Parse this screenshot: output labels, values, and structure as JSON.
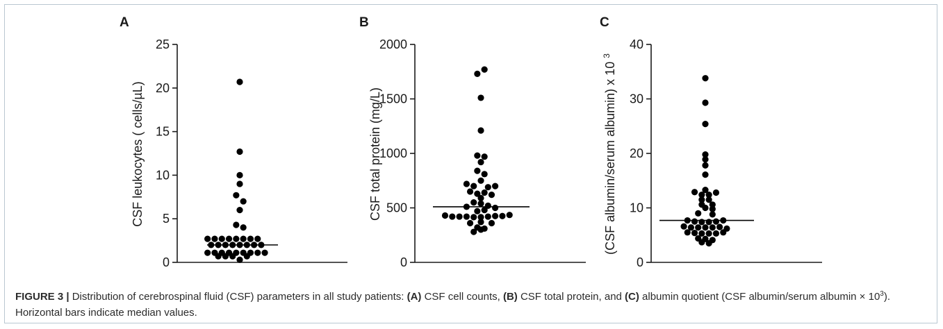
{
  "caption": {
    "figure_label": "FIGURE 3 |",
    "intro": " Distribution of cerebrospinal fluid (CSF) parameters in all study patients: ",
    "a_tag": "(A)",
    "a_text": " CSF cell counts, ",
    "b_tag": "(B)",
    "b_text": " CSF total protein, and ",
    "c_tag": "(C)",
    "c_text": " albumin quotient (CSF albumin/serum albumin × 10",
    "exp": "3",
    "tail": "). Horizontal bars indicate median values."
  },
  "chart_data": [
    {
      "type": "scatter",
      "panel": "A",
      "ylabel": "CSF leukocytes ( cells/µL)",
      "ylim": [
        0,
        25
      ],
      "yticks": [
        0,
        5,
        10,
        15,
        20,
        25
      ],
      "median": 2,
      "points": [
        {
          "x": 0,
          "y": 20.7
        },
        {
          "x": 0,
          "y": 12.7
        },
        {
          "x": 0,
          "y": 10.0
        },
        {
          "x": 0,
          "y": 9.0
        },
        {
          "x": -0.5,
          "y": 7.7
        },
        {
          "x": 0.5,
          "y": 7.0
        },
        {
          "x": 0,
          "y": 6.0
        },
        {
          "x": -0.5,
          "y": 4.3
        },
        {
          "x": 0.5,
          "y": 4.0
        },
        {
          "x": -4.5,
          "y": 2.7
        },
        {
          "x": -3.5,
          "y": 2.7
        },
        {
          "x": -2.5,
          "y": 2.7
        },
        {
          "x": -1.5,
          "y": 2.7
        },
        {
          "x": -0.5,
          "y": 2.7
        },
        {
          "x": 0.5,
          "y": 2.7
        },
        {
          "x": 1.5,
          "y": 2.7
        },
        {
          "x": 2.5,
          "y": 2.7
        },
        {
          "x": -4,
          "y": 2.0
        },
        {
          "x": -3,
          "y": 2.0
        },
        {
          "x": -2,
          "y": 2.0
        },
        {
          "x": -1,
          "y": 2.0
        },
        {
          "x": 0,
          "y": 2.0
        },
        {
          "x": 1,
          "y": 2.0
        },
        {
          "x": 2,
          "y": 2.0
        },
        {
          "x": 3,
          "y": 2.0
        },
        {
          "x": -4.5,
          "y": 1.1
        },
        {
          "x": -3.5,
          "y": 1.1
        },
        {
          "x": -2.5,
          "y": 1.1
        },
        {
          "x": -1.5,
          "y": 1.1
        },
        {
          "x": -0.5,
          "y": 1.1
        },
        {
          "x": 0.5,
          "y": 1.1
        },
        {
          "x": 1.5,
          "y": 1.1
        },
        {
          "x": 2.5,
          "y": 1.1
        },
        {
          "x": 3.5,
          "y": 1.1
        },
        {
          "x": -3,
          "y": 0.7
        },
        {
          "x": -2,
          "y": 0.7
        },
        {
          "x": -1,
          "y": 0.7
        },
        {
          "x": 1,
          "y": 0.7
        },
        {
          "x": 0,
          "y": 0.3
        }
      ]
    },
    {
      "type": "scatter",
      "panel": "B",
      "ylabel": "CSF total protein (mg/L)",
      "ylim": [
        0,
        2000
      ],
      "yticks": [
        0,
        500,
        1000,
        1500,
        2000
      ],
      "median": 510,
      "points": [
        {
          "x": 0.5,
          "y": 1770
        },
        {
          "x": -0.5,
          "y": 1730
        },
        {
          "x": 0,
          "y": 1510
        },
        {
          "x": 0,
          "y": 1210
        },
        {
          "x": -0.5,
          "y": 980
        },
        {
          "x": 0.5,
          "y": 970
        },
        {
          "x": 0,
          "y": 920
        },
        {
          "x": -0.5,
          "y": 840
        },
        {
          "x": 0.5,
          "y": 810
        },
        {
          "x": 0,
          "y": 750
        },
        {
          "x": -2,
          "y": 720
        },
        {
          "x": -1,
          "y": 700
        },
        {
          "x": 1,
          "y": 690
        },
        {
          "x": 2,
          "y": 700
        },
        {
          "x": -1.5,
          "y": 650
        },
        {
          "x": -0.5,
          "y": 630
        },
        {
          "x": 0.5,
          "y": 640
        },
        {
          "x": 1.5,
          "y": 620
        },
        {
          "x": 0,
          "y": 590
        },
        {
          "x": -1,
          "y": 550
        },
        {
          "x": 0,
          "y": 540
        },
        {
          "x": -2,
          "y": 510
        },
        {
          "x": 1,
          "y": 520
        },
        {
          "x": 2,
          "y": 500
        },
        {
          "x": -0.5,
          "y": 470
        },
        {
          "x": 0.5,
          "y": 480
        },
        {
          "x": -5,
          "y": 430
        },
        {
          "x": -4,
          "y": 420
        },
        {
          "x": -3,
          "y": 420
        },
        {
          "x": -2,
          "y": 420
        },
        {
          "x": -1,
          "y": 415
        },
        {
          "x": 0,
          "y": 415
        },
        {
          "x": 1,
          "y": 420
        },
        {
          "x": 2,
          "y": 425
        },
        {
          "x": 3,
          "y": 425
        },
        {
          "x": 4,
          "y": 435
        },
        {
          "x": -1.5,
          "y": 360
        },
        {
          "x": 0,
          "y": 370
        },
        {
          "x": 1.5,
          "y": 360
        },
        {
          "x": -0.5,
          "y": 320
        },
        {
          "x": 0.5,
          "y": 310
        },
        {
          "x": -1,
          "y": 280
        },
        {
          "x": 0,
          "y": 300
        }
      ]
    },
    {
      "type": "scatter",
      "panel": "C",
      "ylabel": "(CSF albumin/serum albumin) x 10 ",
      "ylabel_exp": "3",
      "ylim": [
        0,
        40
      ],
      "yticks": [
        0,
        10,
        20,
        30,
        40
      ],
      "median": 7.7,
      "points": [
        {
          "x": 0,
          "y": 33.8
        },
        {
          "x": 0,
          "y": 29.3
        },
        {
          "x": 0,
          "y": 25.4
        },
        {
          "x": 0,
          "y": 19.8
        },
        {
          "x": 0,
          "y": 18.9
        },
        {
          "x": 0,
          "y": 17.8
        },
        {
          "x": 0,
          "y": 16.1
        },
        {
          "x": 0,
          "y": 13.3
        },
        {
          "x": -1.5,
          "y": 12.9
        },
        {
          "x": 1.5,
          "y": 12.8
        },
        {
          "x": -0.5,
          "y": 12.4
        },
        {
          "x": 0.5,
          "y": 12.4
        },
        {
          "x": -0.5,
          "y": 11.5
        },
        {
          "x": 0.5,
          "y": 11.5
        },
        {
          "x": -0.5,
          "y": 10.6
        },
        {
          "x": 1,
          "y": 10.6
        },
        {
          "x": 0,
          "y": 10.0
        },
        {
          "x": 1,
          "y": 9.8
        },
        {
          "x": -1,
          "y": 9.0
        },
        {
          "x": 1,
          "y": 8.8
        },
        {
          "x": -2.5,
          "y": 7.7
        },
        {
          "x": -1.5,
          "y": 7.5
        },
        {
          "x": -0.5,
          "y": 7.4
        },
        {
          "x": 0.5,
          "y": 7.4
        },
        {
          "x": 1.5,
          "y": 7.5
        },
        {
          "x": 2.5,
          "y": 7.7
        },
        {
          "x": -3,
          "y": 6.6
        },
        {
          "x": -2,
          "y": 6.4
        },
        {
          "x": -1,
          "y": 6.4
        },
        {
          "x": 0,
          "y": 6.4
        },
        {
          "x": 1,
          "y": 6.4
        },
        {
          "x": 2,
          "y": 6.5
        },
        {
          "x": 3,
          "y": 6.2
        },
        {
          "x": -2.5,
          "y": 5.5
        },
        {
          "x": -1.5,
          "y": 5.4
        },
        {
          "x": -0.5,
          "y": 5.3
        },
        {
          "x": 0.5,
          "y": 5.3
        },
        {
          "x": 1.5,
          "y": 5.3
        },
        {
          "x": 2.5,
          "y": 5.5
        },
        {
          "x": -1,
          "y": 4.4
        },
        {
          "x": 0,
          "y": 4.3
        },
        {
          "x": 1,
          "y": 4.1
        },
        {
          "x": -0.5,
          "y": 3.7
        },
        {
          "x": 0.5,
          "y": 3.5
        }
      ]
    }
  ]
}
